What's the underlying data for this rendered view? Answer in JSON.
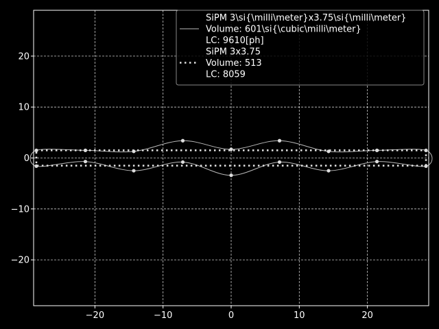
{
  "chart_data": {
    "type": "line",
    "xlim": [
      -29,
      29
    ],
    "ylim": [
      -29,
      29
    ],
    "xticks": [
      -20,
      -10,
      0,
      10,
      20
    ],
    "yticks": [
      -20,
      -10,
      0,
      10,
      20
    ],
    "xtick_labels": [
      "−20",
      "−10",
      "0",
      "10",
      "20"
    ],
    "ytick_labels": [
      "−20",
      "−10",
      "0",
      "10",
      "20"
    ],
    "grid": true,
    "legend_position": "top-right",
    "colors": {
      "background": "#000000",
      "foreground": "#ffffff",
      "series": "#bbbbbb",
      "grid": "#ffffff"
    },
    "series": [
      {
        "name": "SiPM 3\\si{\\milli\\meter}x3.75\\si{\\milli\\meter}",
        "legend_lines": [
          "SiPM 3\\si{\\milli\\meter}x3.75\\si{\\milli\\meter}",
          "Volume: 601\\si{\\cubic\\milli\\meter}",
          "LC: 9610[ph]"
        ],
        "style": "solid",
        "closed": true,
        "points": [
          [
            -28.6,
            1.5
          ],
          [
            -21.4,
            1.5
          ],
          [
            -14.3,
            1.3
          ],
          [
            -7.1,
            3.4
          ],
          [
            0,
            1.7
          ],
          [
            7.1,
            3.4
          ],
          [
            14.3,
            1.3
          ],
          [
            21.4,
            1.5
          ],
          [
            28.6,
            1.5
          ],
          [
            28.6,
            -1.6
          ],
          [
            21.4,
            -0.7
          ],
          [
            14.3,
            -2.5
          ],
          [
            7.1,
            -0.8
          ],
          [
            0,
            -3.4
          ],
          [
            -7.1,
            -0.8
          ],
          [
            -14.3,
            -2.5
          ],
          [
            -21.4,
            -0.7
          ],
          [
            -28.6,
            -1.6
          ]
        ]
      },
      {
        "name": "SiPM 3x3.75",
        "legend_lines": [
          "SiPM 3x3.75",
          "Volume: 513",
          " LC: 8059"
        ],
        "style": "dotted",
        "closed": true,
        "points": [
          [
            -28.6,
            1.5
          ],
          [
            28.6,
            1.5
          ],
          [
            28.6,
            -1.5
          ],
          [
            -28.6,
            -1.5
          ]
        ]
      }
    ]
  }
}
